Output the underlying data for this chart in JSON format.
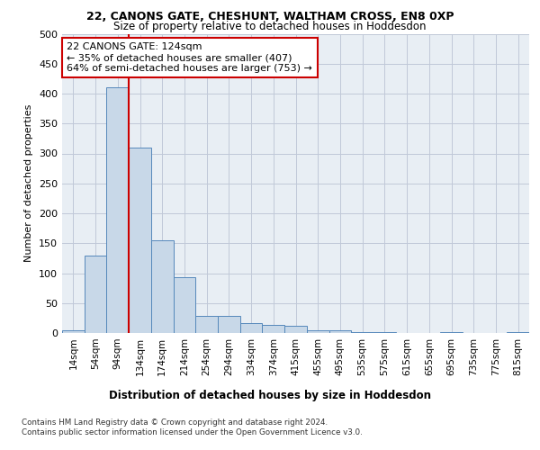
{
  "title1": "22, CANONS GATE, CHESHUNT, WALTHAM CROSS, EN8 0XP",
  "title2": "Size of property relative to detached houses in Hoddesdon",
  "xlabel": "Distribution of detached houses by size in Hoddesdon",
  "ylabel": "Number of detached properties",
  "bin_labels": [
    "14sqm",
    "54sqm",
    "94sqm",
    "134sqm",
    "174sqm",
    "214sqm",
    "254sqm",
    "294sqm",
    "334sqm",
    "374sqm",
    "415sqm",
    "455sqm",
    "495sqm",
    "535sqm",
    "575sqm",
    "615sqm",
    "655sqm",
    "695sqm",
    "735sqm",
    "775sqm",
    "815sqm"
  ],
  "bar_heights": [
    5,
    130,
    410,
    310,
    155,
    93,
    28,
    28,
    16,
    13,
    12,
    5,
    5,
    2,
    1,
    0,
    0,
    1,
    0,
    0,
    1
  ],
  "bar_color": "#c8d8e8",
  "bar_edge_color": "#5588bb",
  "grid_color": "#c0c8d8",
  "background_color": "#e8eef4",
  "vline_color": "#cc0000",
  "annotation_text": "22 CANONS GATE: 124sqm\n← 35% of detached houses are smaller (407)\n64% of semi-detached houses are larger (753) →",
  "annotation_box_color": "#ffffff",
  "annotation_box_edge": "#cc0000",
  "footer1": "Contains HM Land Registry data © Crown copyright and database right 2024.",
  "footer2": "Contains public sector information licensed under the Open Government Licence v3.0.",
  "ylim": [
    0,
    500
  ],
  "yticks": [
    0,
    50,
    100,
    150,
    200,
    250,
    300,
    350,
    400,
    450,
    500
  ]
}
